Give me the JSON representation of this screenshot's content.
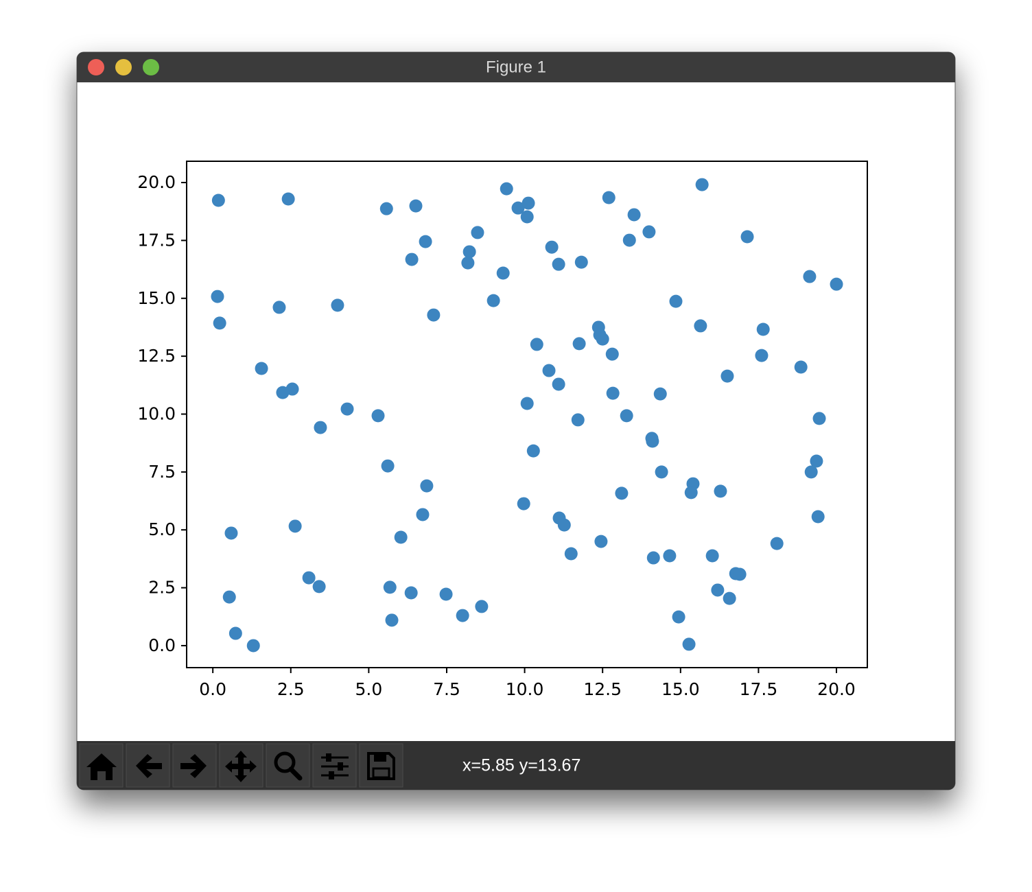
{
  "window": {
    "title": "Figure 1",
    "status": "x=5.85 y=13.67"
  },
  "chart_data": {
    "type": "scatter",
    "color": "#3d85c0",
    "xlim": [
      -0.84,
      20.99
    ],
    "ylim": [
      -0.95,
      20.92
    ],
    "xticks": [
      {
        "value": 0,
        "label": "0.0"
      },
      2.5,
      {
        "value": 5,
        "label": "5.0"
      },
      7.5,
      {
        "value": 10,
        "label": "10.0"
      },
      12.5,
      {
        "value": 15,
        "label": "15.0"
      },
      17.5,
      {
        "value": 20,
        "label": "20.0"
      }
    ],
    "yticks": [
      {
        "value": 0,
        "label": "0.0"
      },
      2.5,
      {
        "value": 5,
        "label": "5.0"
      },
      7.5,
      {
        "value": 10,
        "label": "10.0"
      },
      12.5,
      {
        "value": 15,
        "label": "15.0"
      },
      17.5,
      {
        "value": 20,
        "label": "20.0"
      }
    ],
    "x": [
      0.18,
      2.42,
      5.57,
      6.51,
      9.42,
      9.79,
      10.12,
      10.08,
      12.7,
      15.69,
      13.51,
      13.99,
      13.36,
      17.14,
      6.82,
      8.49,
      8.23,
      8.18,
      6.38,
      10.87,
      11.09,
      11.82,
      9.31,
      0.15,
      0.22,
      2.13,
      4.0,
      9.0,
      7.08,
      19.14,
      20.0,
      14.85,
      15.64,
      17.65,
      17.6,
      18.86,
      12.37,
      12.41,
      12.5,
      11.75,
      10.39,
      12.81,
      16.5,
      1.56,
      2.24,
      2.55,
      10.78,
      11.09,
      12.83,
      14.35,
      4.31,
      5.3,
      10.08,
      3.45,
      11.71,
      13.27,
      19.45,
      14.08,
      14.1,
      10.28,
      5.61,
      14.39,
      19.36,
      19.19,
      6.86,
      15.4,
      15.34,
      16.28,
      13.11,
      9.97,
      6.73,
      11.11,
      11.27,
      19.41,
      0.59,
      2.64,
      6.03,
      12.45,
      18.09,
      11.49,
      14.13,
      14.65,
      16.02,
      16.77,
      16.9,
      3.08,
      3.41,
      0.53,
      5.68,
      6.36,
      7.48,
      16.19,
      16.57,
      8.62,
      8.01,
      5.74,
      14.94,
      0.73,
      1.3,
      15.27
    ],
    "y": [
      19.23,
      19.29,
      18.87,
      18.99,
      19.73,
      18.9,
      19.11,
      18.52,
      19.35,
      19.91,
      18.61,
      17.87,
      17.51,
      17.66,
      17.45,
      17.84,
      17.01,
      16.53,
      16.68,
      17.21,
      16.47,
      16.56,
      16.09,
      15.08,
      13.93,
      14.61,
      14.7,
      14.9,
      14.28,
      15.94,
      15.61,
      14.87,
      13.81,
      13.66,
      12.53,
      12.03,
      13.75,
      13.42,
      13.24,
      13.04,
      13.01,
      12.59,
      11.64,
      11.97,
      10.93,
      11.08,
      11.88,
      11.29,
      10.9,
      10.87,
      10.22,
      9.93,
      10.46,
      9.42,
      9.75,
      9.93,
      9.81,
      8.95,
      8.83,
      8.41,
      7.76,
      7.5,
      7.97,
      7.5,
      6.9,
      6.99,
      6.61,
      6.67,
      6.58,
      6.13,
      5.66,
      5.51,
      5.21,
      5.57,
      4.86,
      5.16,
      4.68,
      4.5,
      4.41,
      3.97,
      3.79,
      3.88,
      3.88,
      3.11,
      3.08,
      2.93,
      2.55,
      2.1,
      2.52,
      2.28,
      2.22,
      2.4,
      2.04,
      1.69,
      1.3,
      1.1,
      1.24,
      0.53,
      0.0,
      0.06
    ]
  }
}
